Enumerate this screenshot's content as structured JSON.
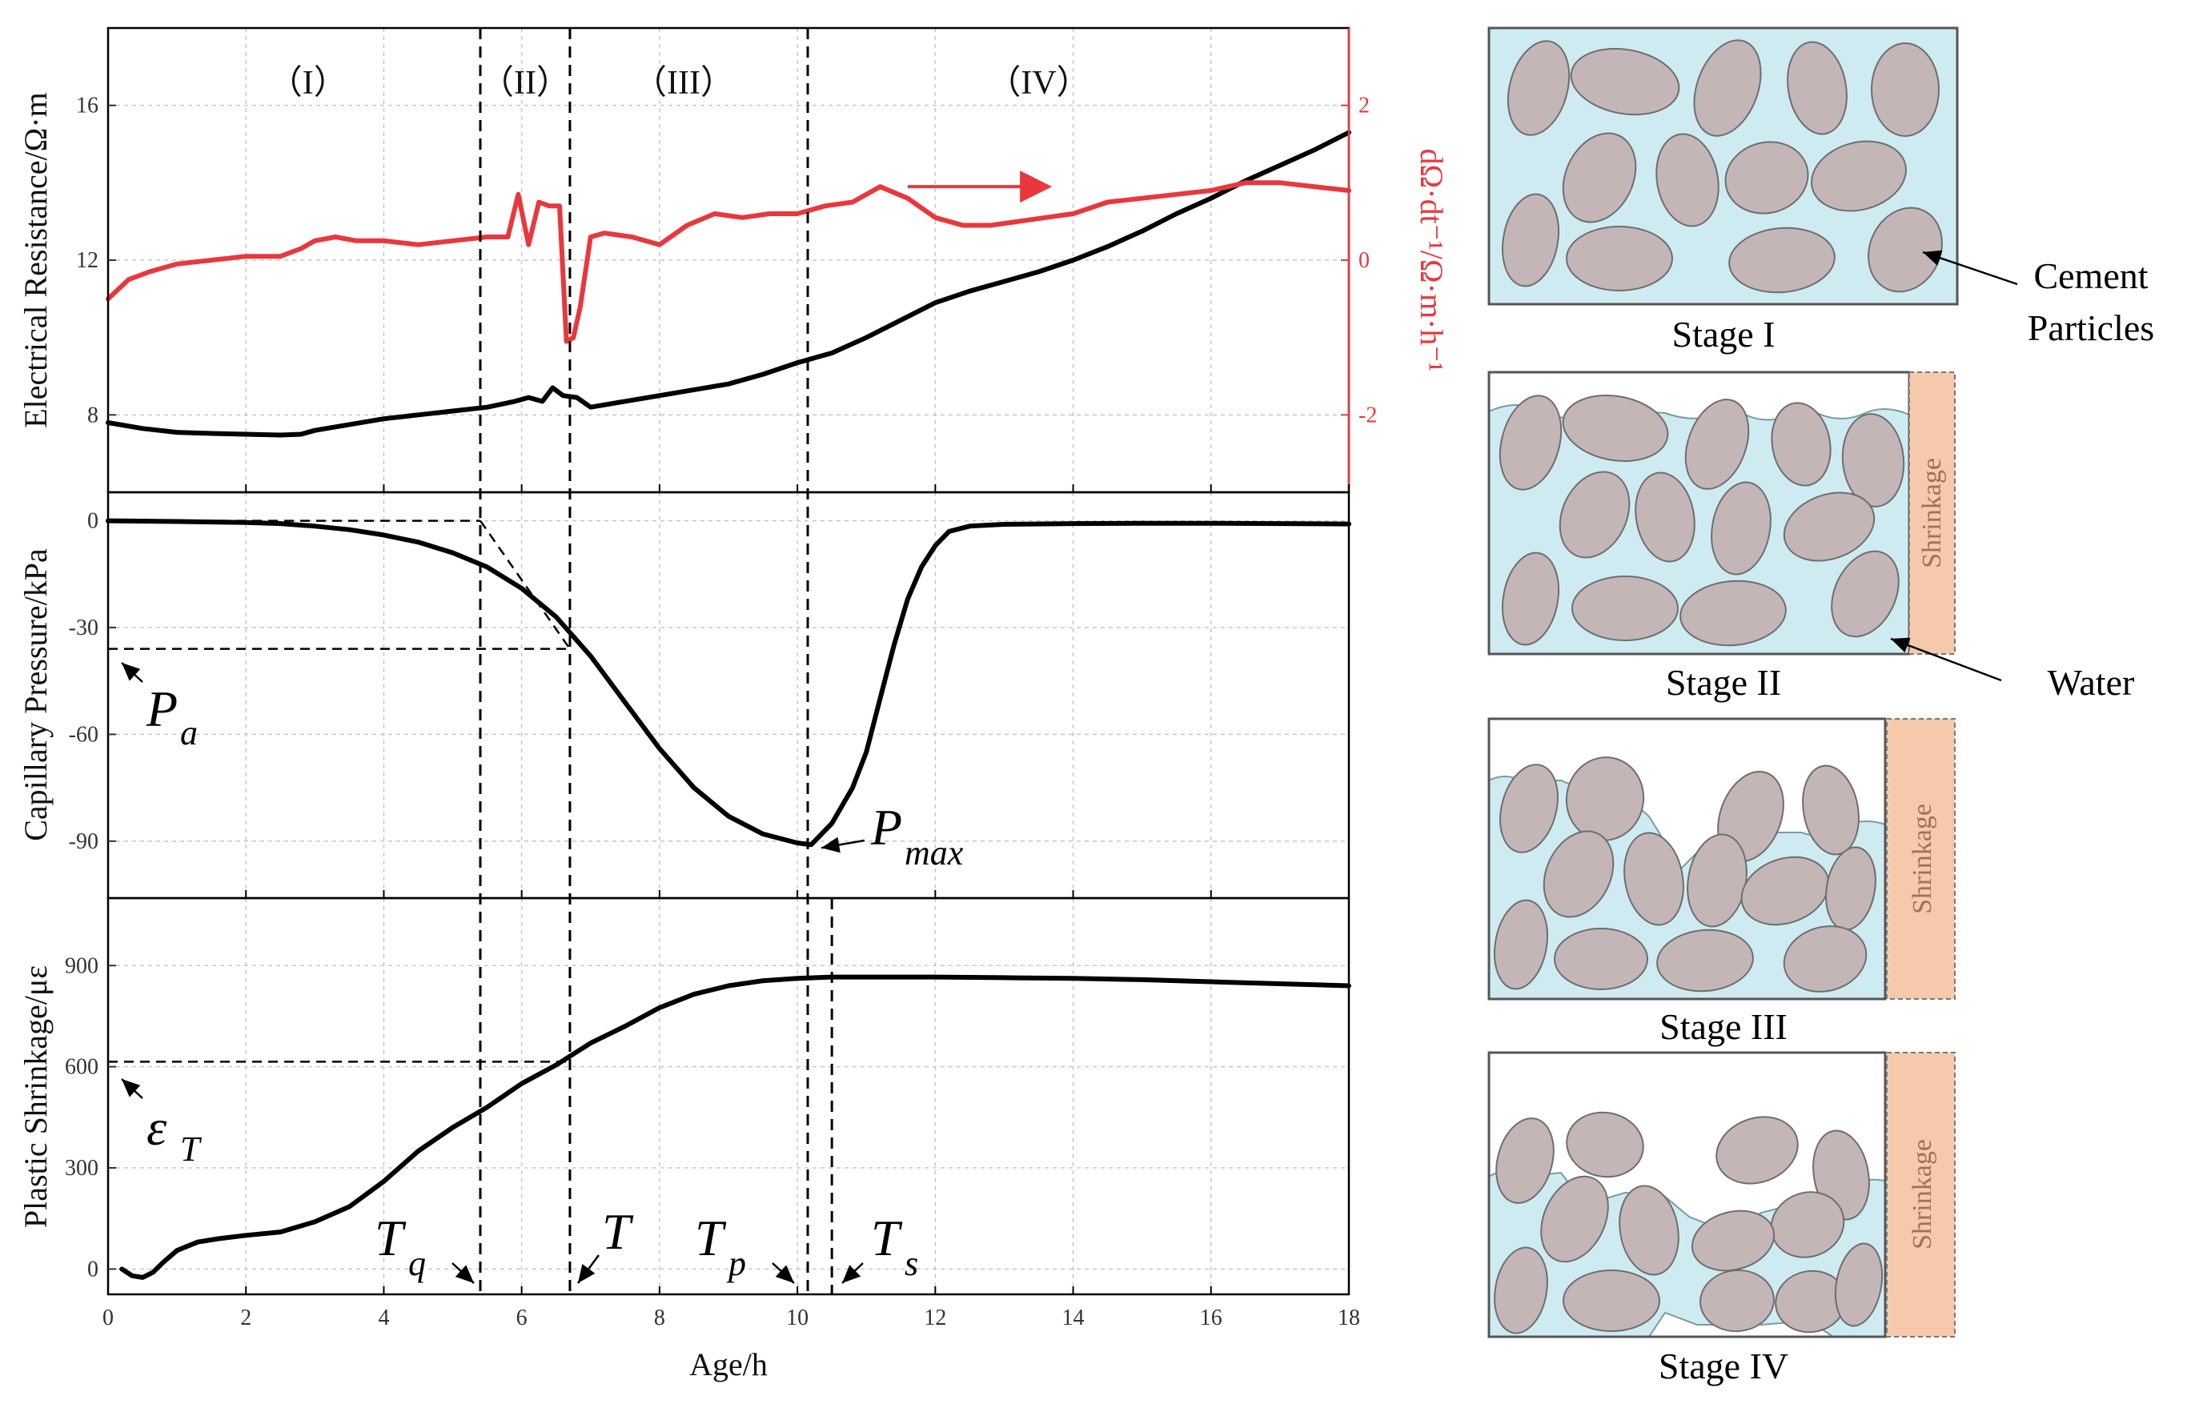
{
  "chart_data": [
    {
      "type": "line",
      "panel": "resistance",
      "xlabel": "Age/h",
      "ylabel": "Electrical Resistance/Ω·m",
      "y2label": "dΩ·dt⁻¹/Ω·m·h⁻¹",
      "xlim": [
        0,
        18
      ],
      "ylim": [
        6,
        18
      ],
      "y2lim": [
        -3,
        3
      ],
      "x_ticks": [
        "0",
        "2",
        "4",
        "6",
        "8",
        "10",
        "12",
        "14",
        "16",
        "18"
      ],
      "y_ticks": [
        "8",
        "12",
        "16"
      ],
      "y2_ticks": [
        "-2",
        "0",
        "2"
      ],
      "stage_labels": [
        "（I）",
        "（II）",
        "（III）",
        "（IV）"
      ],
      "series": [
        {
          "name": "Electrical Resistance",
          "axis": "left",
          "color": "#000000",
          "x": [
            0,
            0.5,
            1,
            1.5,
            2,
            2.5,
            2.8,
            3,
            3.5,
            4,
            4.5,
            5,
            5.5,
            5.9,
            6.1,
            6.3,
            6.45,
            6.6,
            6.8,
            7,
            7.5,
            8,
            8.5,
            9,
            9.5,
            10,
            10.5,
            11,
            11.5,
            12,
            12.5,
            13,
            13.5,
            14,
            14.5,
            15,
            15.5,
            16,
            16.5,
            17,
            17.5,
            18
          ],
          "y": [
            7.8,
            7.65,
            7.55,
            7.52,
            7.5,
            7.48,
            7.5,
            7.6,
            7.75,
            7.9,
            8.0,
            8.1,
            8.2,
            8.35,
            8.45,
            8.35,
            8.7,
            8.5,
            8.45,
            8.2,
            8.35,
            8.5,
            8.65,
            8.8,
            9.05,
            9.35,
            9.6,
            10.0,
            10.45,
            10.9,
            11.2,
            11.45,
            11.7,
            12.0,
            12.35,
            12.75,
            13.2,
            13.6,
            14.05,
            14.45,
            14.85,
            15.3
          ]
        },
        {
          "name": "dΩ/dt",
          "axis": "right",
          "color": "#e8383d",
          "x": [
            0,
            0.3,
            0.6,
            1,
            1.5,
            2,
            2.5,
            2.8,
            3,
            3.3,
            3.6,
            4,
            4.5,
            5,
            5.5,
            5.8,
            5.95,
            6.1,
            6.25,
            6.4,
            6.55,
            6.65,
            6.75,
            6.85,
            7.0,
            7.2,
            7.6,
            8.0,
            8.4,
            8.8,
            9.2,
            9.6,
            10.0,
            10.4,
            10.8,
            11.2,
            11.6,
            12.0,
            12.4,
            12.8,
            13.2,
            13.6,
            14,
            14.5,
            15,
            15.5,
            16,
            16.5,
            17,
            17.5,
            18
          ],
          "y": [
            -0.5,
            -0.25,
            -0.15,
            -0.05,
            0.0,
            0.05,
            0.05,
            0.15,
            0.25,
            0.3,
            0.25,
            0.25,
            0.2,
            0.25,
            0.3,
            0.3,
            0.85,
            0.2,
            0.75,
            0.7,
            0.7,
            -1.05,
            -1.0,
            -0.6,
            0.3,
            0.35,
            0.3,
            0.2,
            0.45,
            0.6,
            0.55,
            0.6,
            0.6,
            0.7,
            0.75,
            0.95,
            0.8,
            0.55,
            0.45,
            0.45,
            0.5,
            0.55,
            0.6,
            0.75,
            0.8,
            0.85,
            0.9,
            1.0,
            1.0,
            0.95,
            0.9
          ]
        }
      ],
      "annotation_arrow": "→"
    },
    {
      "type": "line",
      "panel": "capillary",
      "ylabel": "Capillary Pressure/kPa",
      "xlim": [
        0,
        18
      ],
      "ylim": [
        -106,
        8
      ],
      "y_ticks": [
        "0",
        "-30",
        "-60",
        "-90"
      ],
      "series": [
        {
          "name": "Capillary Pressure",
          "color": "#000000",
          "x": [
            0,
            1,
            2,
            2.5,
            3,
            3.5,
            4,
            4.5,
            5,
            5.5,
            6,
            6.5,
            7,
            7.5,
            8,
            8.5,
            9,
            9.5,
            10,
            10.2,
            10.5,
            10.8,
            11,
            11.2,
            11.4,
            11.6,
            11.8,
            12,
            12.2,
            12.5,
            13,
            14,
            15,
            16,
            17,
            18
          ],
          "y": [
            0,
            -0.2,
            -0.5,
            -0.8,
            -1.5,
            -2.5,
            -4,
            -6,
            -9,
            -13,
            -19,
            -27,
            -38,
            -51,
            -64,
            -75,
            -83,
            -88,
            -90.5,
            -91,
            -85,
            -75,
            -65,
            -50,
            -35,
            -22,
            -13,
            -7,
            -3,
            -1.5,
            -1,
            -0.8,
            -0.7,
            -0.7,
            -0.8,
            -0.9
          ]
        }
      ],
      "annotations": {
        "Pa": {
          "label": "P",
          "sub": "a",
          "value": -36
        },
        "Pmax": {
          "label": "P",
          "sub": "max",
          "value": -91
        }
      }
    },
    {
      "type": "line",
      "panel": "shrinkage",
      "ylabel": "Plastic Shrinkage/με",
      "xlim": [
        0,
        18
      ],
      "ylim": [
        -75,
        1100
      ],
      "y_ticks": [
        "0",
        "300",
        "600",
        "900"
      ],
      "series": [
        {
          "name": "Plastic Shrinkage",
          "color": "#000000",
          "x": [
            0.2,
            0.35,
            0.5,
            0.65,
            0.8,
            1,
            1.3,
            1.6,
            2,
            2.5,
            3,
            3.5,
            4,
            4.5,
            5,
            5.5,
            6,
            6.5,
            7,
            7.5,
            8,
            8.5,
            9,
            9.5,
            10,
            10.5,
            11,
            11.5,
            12,
            13,
            14,
            15,
            16,
            17,
            18
          ],
          "y": [
            0,
            -20,
            -25,
            -10,
            20,
            55,
            80,
            90,
            100,
            110,
            140,
            185,
            260,
            350,
            420,
            480,
            550,
            605,
            670,
            720,
            775,
            815,
            840,
            855,
            862,
            866,
            866,
            866,
            866,
            864,
            862,
            858,
            852,
            846,
            840
          ]
        }
      ],
      "annotations": {
        "epsT": {
          "label": "ε",
          "sub": "T",
          "value": 615
        }
      },
      "time_markers": [
        {
          "label": "T",
          "sub": "q",
          "x": 5.4
        },
        {
          "label": "T",
          "sub": "",
          "x": 6.7
        },
        {
          "label": "T",
          "sub": "p",
          "x": 10.15
        },
        {
          "label": "T",
          "sub": "s",
          "x": 10.5
        }
      ]
    }
  ],
  "schematic": {
    "stages": [
      "Stage I",
      "Stage II",
      "Stage III",
      "Stage IV"
    ],
    "shrinkage_label": "Shrinkage",
    "callouts": {
      "cement": [
        "Cement",
        "Particles"
      ],
      "water": "Water"
    }
  },
  "colors": {
    "water": "#cfebf2",
    "particle": "#c4b6b6",
    "shrink": "#f6c9ad",
    "red": "#e8383d"
  }
}
